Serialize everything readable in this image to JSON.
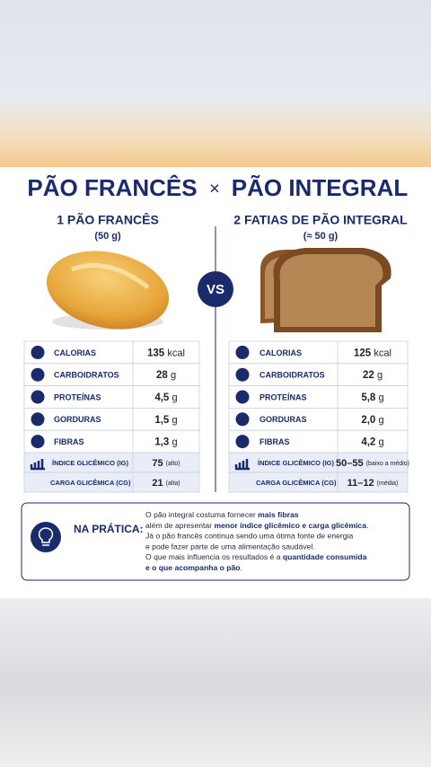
{
  "title": {
    "left": "PÃO FRANCÊS",
    "separator": "×",
    "right": "PÃO INTEGRAL"
  },
  "vs": "VS",
  "left": {
    "heading": "1 PÃO FRANCÊS",
    "portion": "(50 g)",
    "rows": [
      {
        "label": "CALORIAS",
        "value": "135",
        "unit": "kcal"
      },
      {
        "label": "CARBOIDRATOS",
        "value": "28",
        "unit": "g"
      },
      {
        "label": "PROTEÍNAS",
        "value": "4,5",
        "unit": "g"
      },
      {
        "label": "GORDURAS",
        "value": "1,5",
        "unit": "g"
      },
      {
        "label": "FIBRAS",
        "value": "1,3",
        "unit": "g"
      }
    ],
    "glycemic": [
      {
        "label": "ÍNDICE GLICÊMICO (IG)",
        "value": "75",
        "unit": "(alto)"
      },
      {
        "label": "CARGA GLICÊMICA (CG)",
        "value": "21",
        "unit": "(alta)"
      }
    ]
  },
  "right": {
    "heading": "2 FATIAS DE PÃO INTEGRAL",
    "portion": "(≈ 50 g)",
    "rows": [
      {
        "label": "CALORIAS",
        "value": "125",
        "unit": "kcal"
      },
      {
        "label": "CARBOIDRATOS",
        "value": "22",
        "unit": "g"
      },
      {
        "label": "PROTEÍNAS",
        "value": "5,8",
        "unit": "g"
      },
      {
        "label": "GORDURAS",
        "value": "2,0",
        "unit": "g"
      },
      {
        "label": "FIBRAS",
        "value": "4,2",
        "unit": "g"
      }
    ],
    "glycemic": [
      {
        "label": "ÍNDICE GLICÊMICO (IG)",
        "value": "50–55",
        "unit": "(baixo a médio)"
      },
      {
        "label": "CARGA GLICÊMICA (CG)",
        "value": "11–12",
        "unit": "(média)"
      }
    ]
  },
  "note": {
    "heading": "NA PRÁTICA:",
    "lines": [
      [
        {
          "text": "O pão integral costuma fornecer ",
          "bold": false
        },
        {
          "text": "mais fibras",
          "bold": true
        }
      ],
      [
        {
          "text": "além de apresentar ",
          "bold": false
        },
        {
          "text": "menor índice glicêmico e carga glicêmica",
          "bold": true
        },
        {
          "text": ".",
          "bold": false
        }
      ],
      [
        {
          "text": "Já o pão francês continua sendo uma ótima fonte de energia",
          "bold": false
        }
      ],
      [
        {
          "text": "e pode fazer parte de uma alimentação saudável.",
          "bold": false
        }
      ],
      [
        {
          "text": "O que mais influencia os resultados é a ",
          "bold": false
        },
        {
          "text": "quantidade consumida",
          "bold": true
        }
      ],
      [
        {
          "text": "e o que acompanha o pão",
          "bold": true
        },
        {
          "text": ".",
          "bold": false
        }
      ]
    ]
  }
}
